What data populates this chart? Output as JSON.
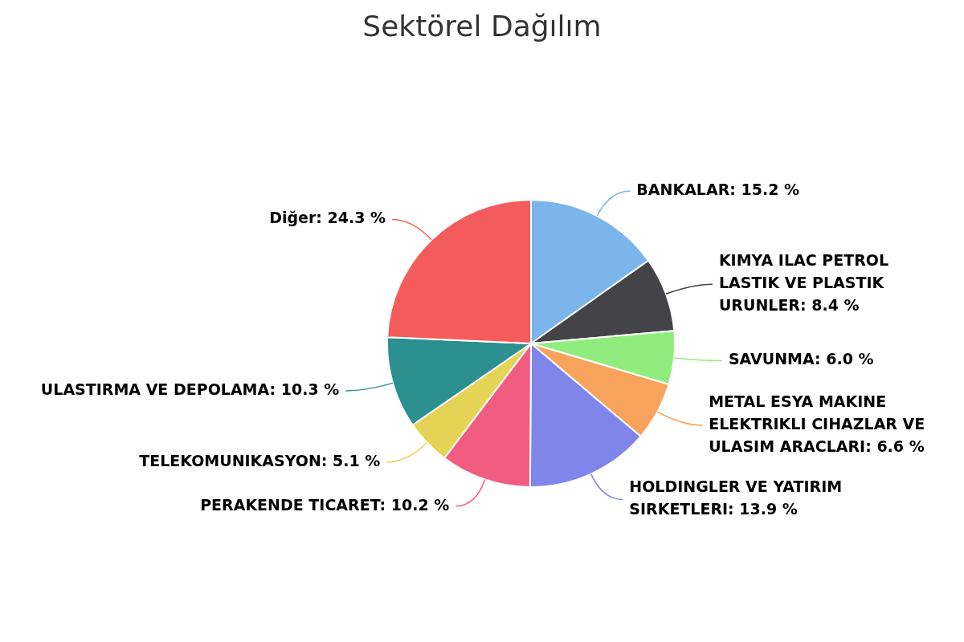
{
  "chart_data": {
    "type": "pie",
    "title": "Sektörel Dağılım",
    "categories": [
      "BANKALAR",
      "KIMYA ILAC PETROL LASTIK VE PLASTIK URUNLER",
      "SAVUNMA",
      "METAL ESYA MAKINE ELEKTRIKLI CIHAZLAR VE ULASIM ARACLARI",
      "HOLDINGLER VE YATIRIM SIRKETLERI",
      "PERAKENDE TICARET",
      "TELEKOMUNIKASYON",
      "ULASTIRMA VE DEPOLAMA",
      "Diğer"
    ],
    "values": [
      15.2,
      8.4,
      6.0,
      6.6,
      13.9,
      10.2,
      5.1,
      10.3,
      24.3
    ],
    "value_labels": [
      "15.2 %",
      "8.4 %",
      "6.0 %",
      "6.6 %",
      "13.9 %",
      "10.2 %",
      "5.1 %",
      "10.3 %",
      "24.3 %"
    ],
    "colors": [
      "#7cb5ec",
      "#434348",
      "#90ed7d",
      "#f7a35c",
      "#8085e9",
      "#f15c80",
      "#e4d354",
      "#2b908f",
      "#f45b5b"
    ],
    "legend": false
  }
}
